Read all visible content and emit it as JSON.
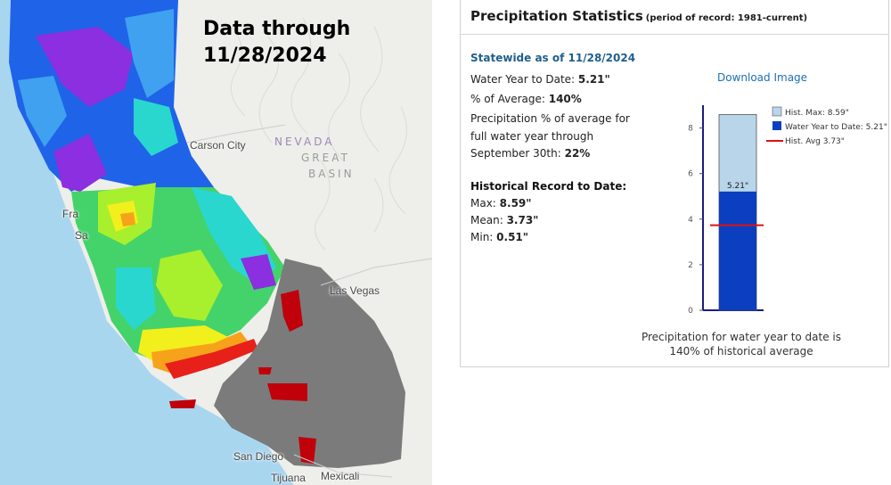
{
  "map": {
    "overlay_line1": "Data through",
    "overlay_line2": "11/28/2024",
    "places": {
      "carson_city": "Carson City",
      "nevada": "NEVADA",
      "great": "GREAT",
      "basin": "BASIN",
      "las_vegas": "Las Vegas",
      "san_diego": "San Diego",
      "tijuana": "Tijuana",
      "mexicali": "Mexicali",
      "fra": "Fra",
      "sa": "Sa"
    },
    "colors": {
      "ocean": "#a9d6ef",
      "land": "#eeeeea",
      "purple": "#8b2fe0",
      "blue": "#1f63e8",
      "light_blue": "#3fa1ef",
      "cyan": "#29d7cf",
      "green": "#43d36a",
      "lime": "#a8ef2e",
      "yellow": "#f1ef1c",
      "orange": "#f7a21b",
      "red": "#e8201a",
      "dark_red": "#c0000a",
      "gray": "#7b7b7b"
    }
  },
  "stats": {
    "title": "Precipitation Statistics",
    "period": "(period of record: 1981-current)",
    "statewide_heading": "Statewide as of 11/28/2024",
    "wytd_label": "Water Year to Date: ",
    "wytd_value": "5.21\"",
    "pct_label": "% of Average: ",
    "pct_value": "140%",
    "full_year_line1": "Precipitation % of average for",
    "full_year_line2": "full water year through",
    "full_year_line3": "September 30th: ",
    "full_year_value": "22%",
    "hist_heading": "Historical Record to Date:",
    "max_label": "Max: ",
    "max_value": "8.59\"",
    "mean_label": "Mean: ",
    "mean_value": "3.73\"",
    "min_label": "Min: ",
    "min_value": "0.51\"",
    "download_label": "Download Image",
    "caption_line1": "Precipitation for water year to date is",
    "caption_line2": "140% of historical average"
  },
  "chart_data": {
    "type": "bar",
    "title": "",
    "xlabel": "",
    "ylabel": "",
    "ylim": [
      0,
      9
    ],
    "yticks": [
      "0",
      "2",
      "4",
      "6",
      "8"
    ],
    "hist_max": 8.59,
    "water_year_to_date": 5.21,
    "hist_avg": 3.73,
    "bar_label": "5.21\"",
    "legend_placement": "top-right",
    "legend": {
      "max": "Hist. Max: 8.59\"",
      "wytd": "Water Year to Date: 5.21\"",
      "avg": "Hist. Avg 3.73\""
    },
    "colors": {
      "max": "#b9d5ea",
      "wytd": "#0b3fbf",
      "avg": "#e01010",
      "axis": "#1c1c7a"
    }
  }
}
